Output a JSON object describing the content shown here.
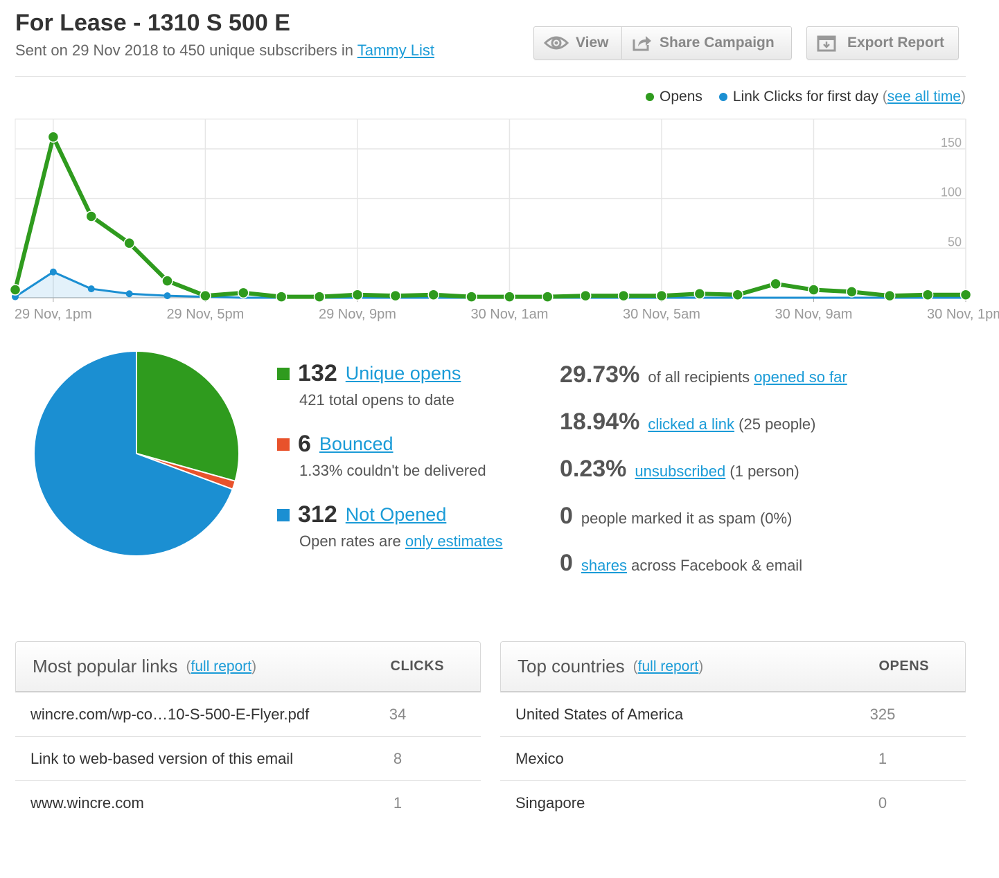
{
  "header": {
    "title": "For Lease - 1310 S 500 E",
    "subtitle_prefix": "Sent on 29 Nov 2018 to 450 unique subscribers in ",
    "list_link": "Tammy List"
  },
  "toolbar": {
    "view_label": "View",
    "share_label": "Share Campaign",
    "export_label": "Export Report"
  },
  "legend": {
    "opens_label": "Opens",
    "clicks_label": "Link Clicks for first day",
    "paren_open": "(",
    "see_all_label": "see all time",
    "paren_close": ")"
  },
  "colors": {
    "opens": "#2f9b1e",
    "clicks": "#1b8fd2",
    "bounced": "#e8522b",
    "grid": "#e6e6e6"
  },
  "chart_data": {
    "type": "line",
    "x": [
      "29 Nov, 12pm",
      "29 Nov, 1pm",
      "29 Nov, 2pm",
      "29 Nov, 3pm",
      "29 Nov, 4pm",
      "29 Nov, 5pm",
      "29 Nov, 6pm",
      "29 Nov, 7pm",
      "29 Nov, 8pm",
      "29 Nov, 9pm",
      "29 Nov, 10pm",
      "29 Nov, 11pm",
      "30 Nov, 12am",
      "30 Nov, 1am",
      "30 Nov, 2am",
      "30 Nov, 3am",
      "30 Nov, 4am",
      "30 Nov, 5am",
      "30 Nov, 6am",
      "30 Nov, 7am",
      "30 Nov, 8am",
      "30 Nov, 9am",
      "30 Nov, 10am",
      "30 Nov, 11am",
      "30 Nov, 12pm",
      "30 Nov, 1pm"
    ],
    "x_tick_labels": [
      "29 Nov, 1pm",
      "29 Nov, 5pm",
      "29 Nov, 9pm",
      "30 Nov, 1am",
      "30 Nov, 5am",
      "30 Nov, 9am",
      "30 Nov, 1pm"
    ],
    "x_tick_index": [
      1,
      5,
      9,
      13,
      17,
      21,
      25
    ],
    "y_ticks": [
      50,
      100,
      150
    ],
    "ylim": [
      0,
      180
    ],
    "grid": true,
    "legend_position": "top-right",
    "series": [
      {
        "name": "Opens",
        "values": [
          8,
          162,
          82,
          55,
          17,
          2,
          5,
          1,
          1,
          3,
          2,
          3,
          1,
          1,
          1,
          2,
          2,
          2,
          4,
          3,
          14,
          8,
          6,
          2,
          3,
          3
        ]
      },
      {
        "name": "Link Clicks for first day",
        "values": [
          1,
          26,
          9,
          4,
          2,
          1,
          0,
          0,
          0,
          0,
          0,
          0,
          0,
          0,
          0,
          0,
          0,
          0,
          0,
          0,
          0,
          0,
          0,
          0,
          0,
          0
        ]
      }
    ]
  },
  "pie_chart": {
    "type": "pie",
    "slices": [
      {
        "name": "Unique opens",
        "value": 132
      },
      {
        "name": "Bounced",
        "value": 6
      },
      {
        "name": "Not Opened",
        "value": 312
      }
    ]
  },
  "stats": {
    "opens_count": "132",
    "opens_link": "Unique opens",
    "opens_sub": "421 total opens to date",
    "bounced_count": "6",
    "bounced_link": "Bounced",
    "bounced_sub": "1.33% couldn't be delivered",
    "notopened_count": "312",
    "notopened_link": "Not Opened",
    "notopened_sub_prefix": "Open rates are ",
    "notopened_sub_link": "only estimates"
  },
  "rates": {
    "opened_pct": "29.73%",
    "opened_prefix": "of all recipients ",
    "opened_link": "opened so far",
    "clicked_pct": "18.94%",
    "clicked_link": "clicked a link",
    "clicked_suffix": " (25 people)",
    "unsub_pct": "0.23%",
    "unsub_link": "unsubscribed",
    "unsub_suffix": " (1 person)",
    "spam_count": "0",
    "spam_text": "people marked it as spam (0%)",
    "shares_count": "0",
    "shares_link": "shares",
    "shares_suffix": " across Facebook & email"
  },
  "links_table": {
    "title": "Most popular links",
    "paren_open": "(",
    "full_report": "full report",
    "paren_close": ")",
    "col": "CLICKS",
    "rows": [
      {
        "label": "wincre.com/wp-co…10-S-500-E-Flyer.pdf",
        "value": "34"
      },
      {
        "label": "Link to web-based version of this email",
        "value": "8"
      },
      {
        "label": "www.wincre.com",
        "value": "1"
      }
    ]
  },
  "countries_table": {
    "title": "Top countries",
    "paren_open": "(",
    "full_report": "full report",
    "paren_close": ")",
    "col": "OPENS",
    "rows": [
      {
        "label": "United States of America",
        "value": "325"
      },
      {
        "label": "Mexico",
        "value": "1"
      },
      {
        "label": "Singapore",
        "value": "0"
      }
    ]
  }
}
